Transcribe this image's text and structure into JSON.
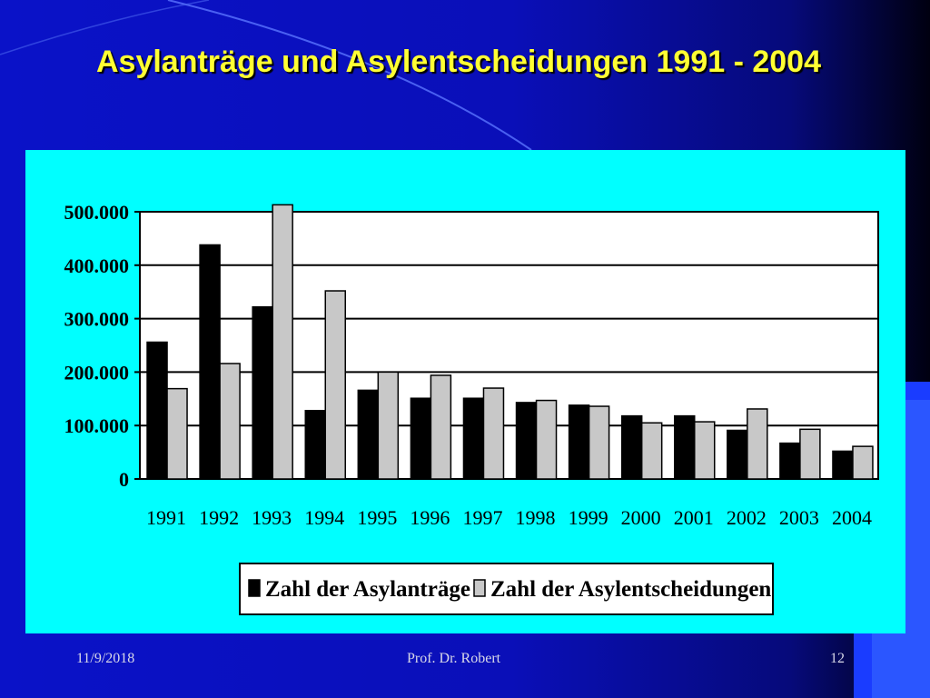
{
  "slide": {
    "title": "Asylanträge und Asylentscheidungen 1991 - 2004",
    "footer_date": "11/9/2018",
    "footer_author": "Prof. Dr. Robert",
    "footer_page": "12"
  },
  "colors": {
    "background": "#0a12c8",
    "title": "#ffff33",
    "chart_area": "#00ffff",
    "plot_area": "#ffffff",
    "series_antraege": "#000000",
    "series_entscheidungen": "#c8c8c8"
  },
  "chart_data": {
    "type": "bar",
    "title": "",
    "xlabel": "",
    "ylabel": "",
    "ylim": [
      0,
      500000
    ],
    "yticks": [
      0,
      100000,
      200000,
      300000,
      400000,
      500000
    ],
    "ytick_labels": [
      "0",
      "100.000",
      "200.000",
      "300.000",
      "400.000",
      "500.000"
    ],
    "grid": true,
    "legend_position": "bottom",
    "categories": [
      "1991",
      "1992",
      "1993",
      "1994",
      "1995",
      "1996",
      "1997",
      "1998",
      "1999",
      "2000",
      "2001",
      "2002",
      "2003",
      "2004"
    ],
    "series": [
      {
        "name": "Zahl der Asylanträge",
        "color": "#000000",
        "values": [
          256000,
          438000,
          322000,
          128000,
          166000,
          151000,
          151000,
          143000,
          138000,
          118000,
          118000,
          91000,
          67000,
          52000
        ]
      },
      {
        "name": "Zahl der Asylentscheidungen",
        "color": "#c8c8c8",
        "values": [
          169000,
          216000,
          513000,
          352000,
          200000,
          194000,
          170000,
          147000,
          136000,
          105000,
          107000,
          131000,
          93000,
          61000
        ]
      }
    ]
  }
}
